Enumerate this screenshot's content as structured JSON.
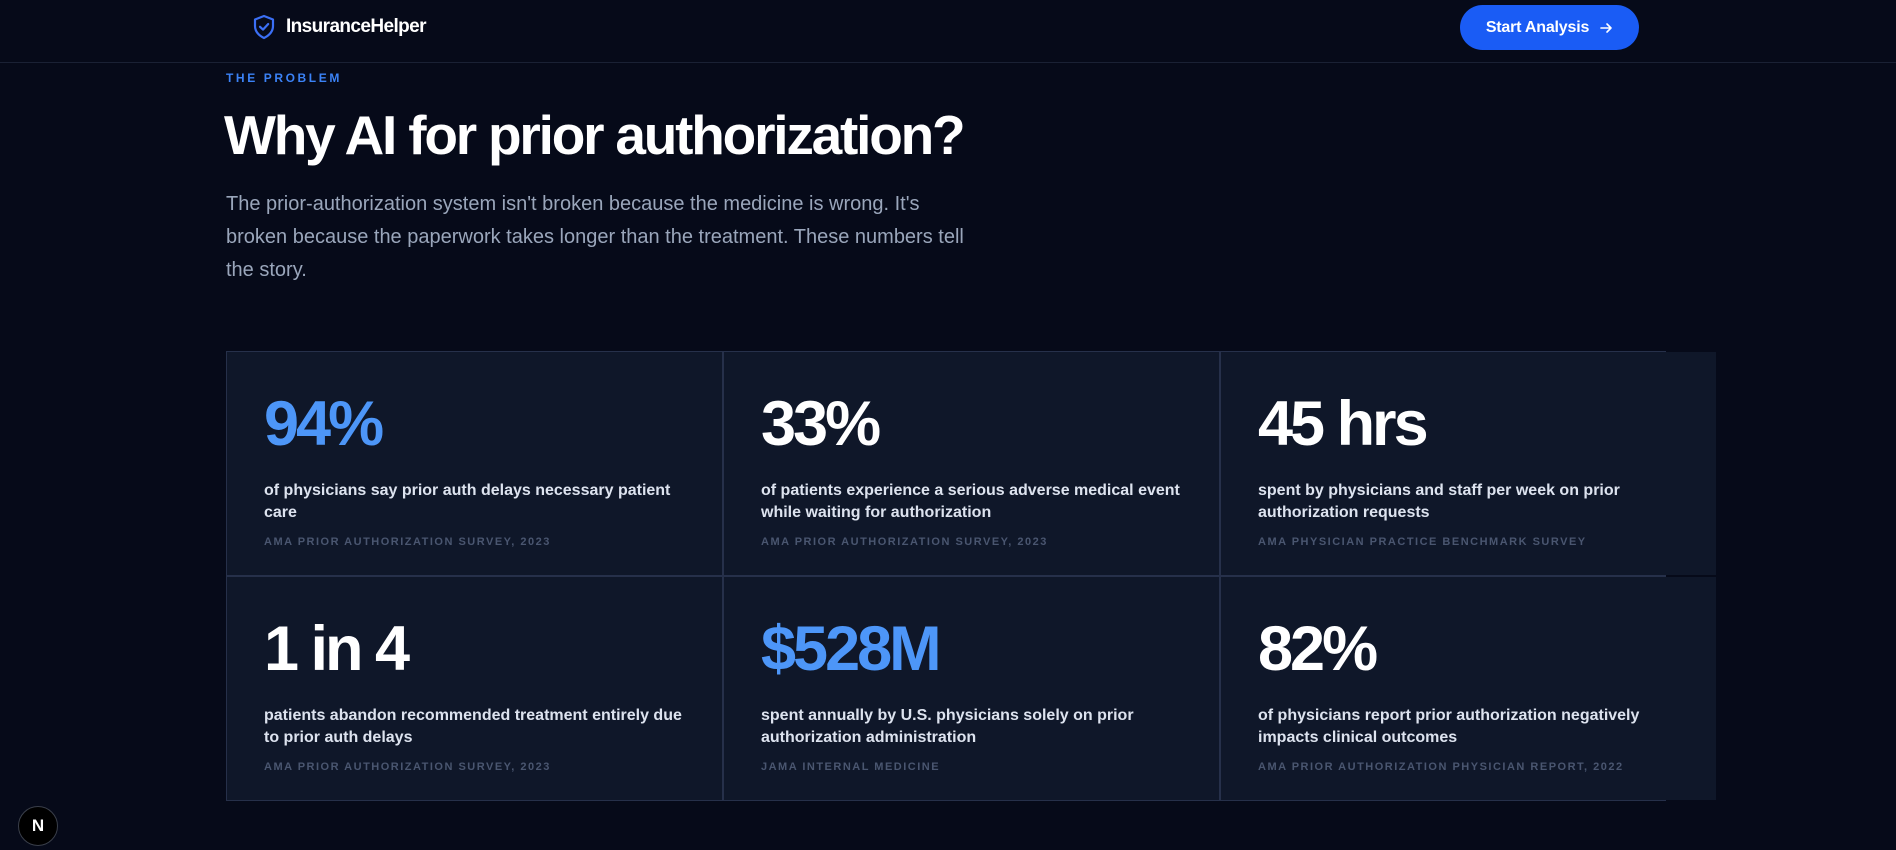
{
  "header": {
    "brand_name": "InsuranceHelper",
    "brand_icon": "shield-check-icon",
    "cta_label": "Start Analysis",
    "cta_icon": "arrow-right-icon"
  },
  "intro": {
    "eyebrow": "THE PROBLEM",
    "headline": "Why AI for prior authorization?",
    "lede": "The prior-authorization system isn't broken because the medicine is wrong. It's broken because the paperwork takes longer than the treatment. These numbers tell the story."
  },
  "stats": [
    {
      "value": "94%",
      "description": "of physicians say prior auth delays necessary patient care",
      "source": "AMA PRIOR AUTHORIZATION SURVEY, 2023",
      "accent": true
    },
    {
      "value": "33%",
      "description": "of patients experience a serious adverse medical event while waiting for authorization",
      "source": "AMA PRIOR AUTHORIZATION SURVEY, 2023",
      "accent": false
    },
    {
      "value": "45 hrs",
      "description": "spent by physicians and staff per week on prior authorization requests",
      "source": "AMA PHYSICIAN PRACTICE BENCHMARK SURVEY",
      "accent": false
    },
    {
      "value": "1 in 4",
      "description": "patients abandon recommended treatment entirely due to prior auth delays",
      "source": "AMA PRIOR AUTHORIZATION SURVEY, 2023",
      "accent": false
    },
    {
      "value": "$528M",
      "description": "spent annually by U.S. physicians solely on prior authorization administration",
      "source": "JAMA INTERNAL MEDICINE",
      "accent": true
    },
    {
      "value": "82%",
      "description": "of physicians report prior authorization negatively impacts clinical outcomes",
      "source": "AMA PRIOR AUTHORIZATION PHYSICIAN REPORT, 2022",
      "accent": false
    }
  ],
  "dev_badge": {
    "label": "N"
  },
  "colors": {
    "background": "#060a19",
    "card": "#0f1729",
    "accent": "#4d96f8",
    "cta": "#1a5cf5"
  }
}
